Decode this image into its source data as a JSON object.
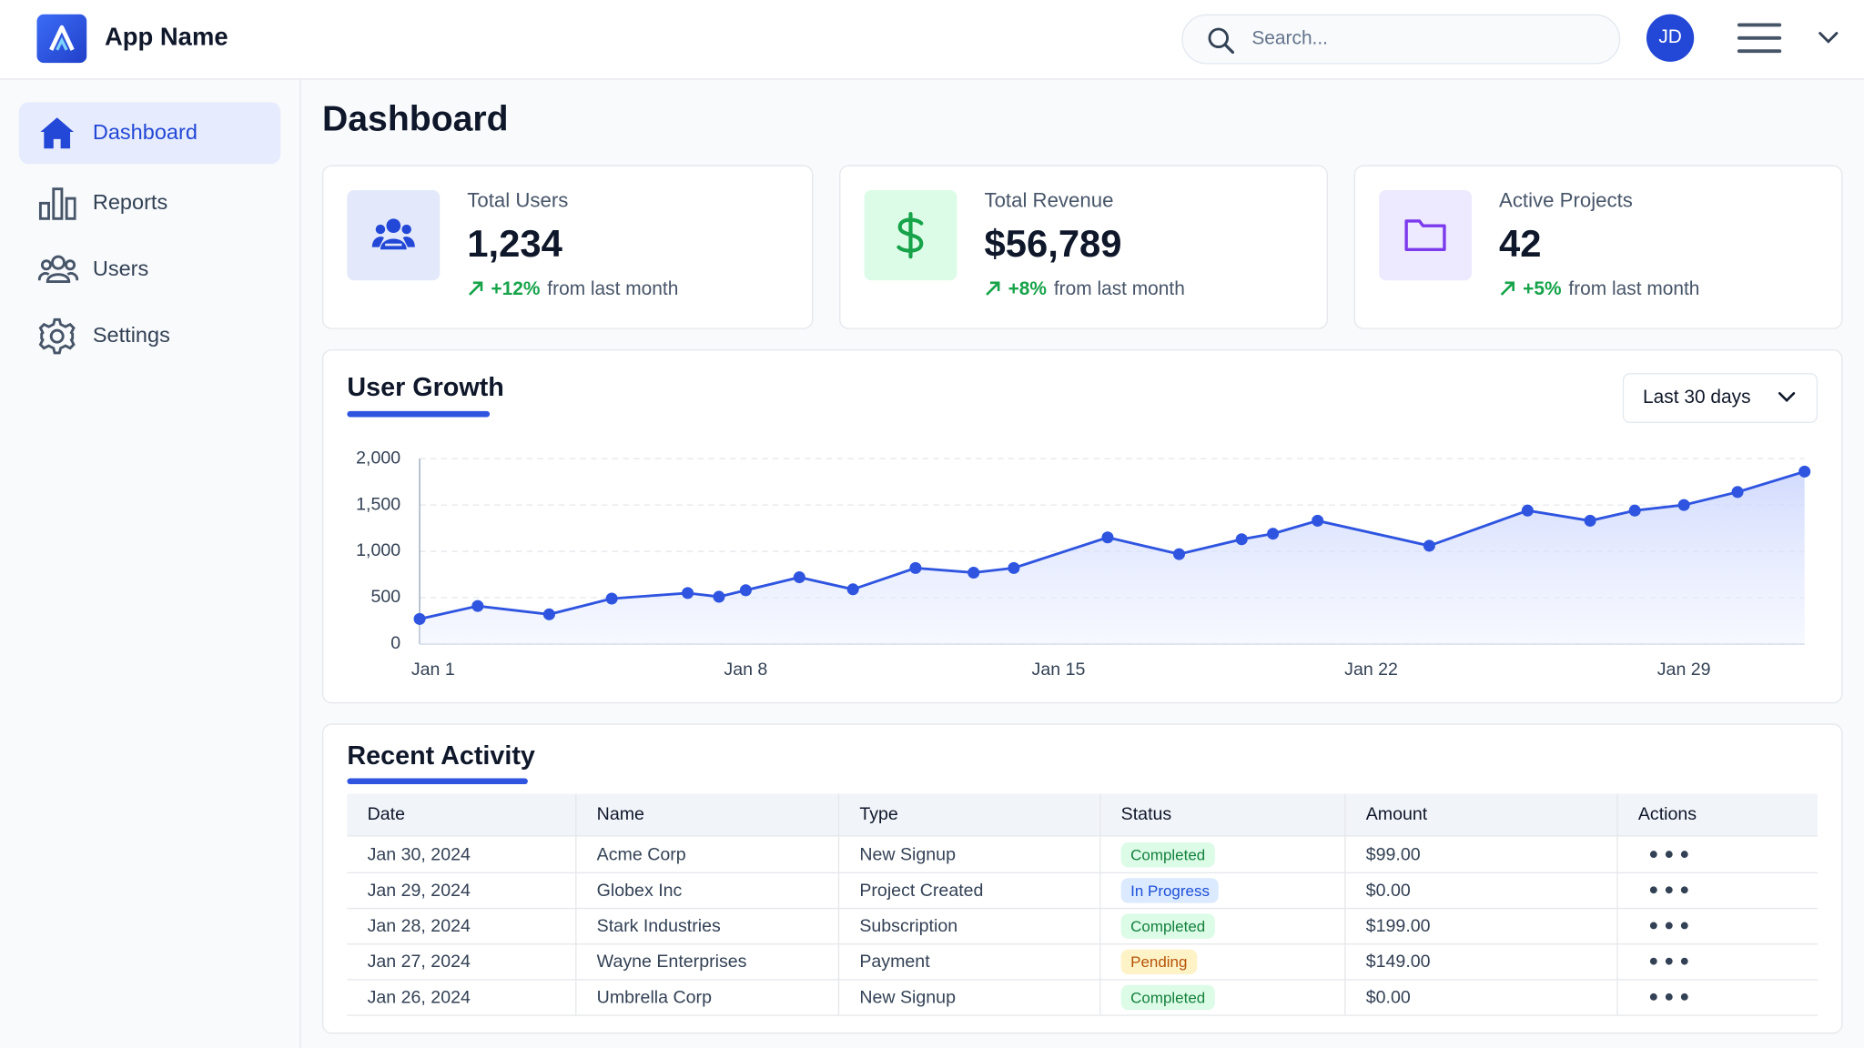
{
  "header": {
    "app_name": "App Name",
    "search_placeholder": "Search...",
    "avatar_initials": "JD"
  },
  "sidebar": {
    "items": [
      "Dashboard",
      "Reports",
      "Users",
      "Settings"
    ]
  },
  "page_title": "Dashboard",
  "stat_cards": [
    {
      "label": "Total Users",
      "value": "1,234",
      "change": "+12%",
      "change_note": "from last month"
    },
    {
      "label": "Total Revenue",
      "value": "$56,789",
      "change": "+8%",
      "change_note": "from last month"
    },
    {
      "label": "Active Projects",
      "value": "42",
      "change": "+5%",
      "change_note": "from last month"
    }
  ],
  "chart_data": {
    "type": "area",
    "title": "User Growth",
    "range_selector": "Last 30 days",
    "x": [
      0.7,
      2.0,
      3.6,
      5.0,
      6.7,
      7.4,
      8.0,
      9.2,
      10.4,
      11.8,
      13.1,
      14.0,
      16.1,
      17.7,
      19.1,
      19.8,
      20.8,
      23.3,
      25.5,
      26.9,
      27.9,
      29.0,
      30.2,
      31.7
    ],
    "values": [
      270,
      410,
      320,
      490,
      550,
      510,
      580,
      720,
      590,
      820,
      770,
      820,
      1150,
      970,
      1130,
      1190,
      1330,
      1060,
      1440,
      1330,
      1440,
      1500,
      1640,
      1860
    ],
    "color": "#2f55e0",
    "xlim": [
      0.7,
      31.7
    ],
    "xticks": [
      {
        "value": 1,
        "label": "Jan 1"
      },
      {
        "value": 8,
        "label": "Jan 8"
      },
      {
        "value": 15,
        "label": "Jan 15"
      },
      {
        "value": 22,
        "label": "Jan 22"
      },
      {
        "value": 29,
        "label": "Jan 29"
      }
    ],
    "ylim": [
      0,
      2000
    ],
    "yticks": [
      0,
      500,
      {
        "value": 1000,
        "label": "1,000"
      },
      {
        "value": 1500,
        "label": "1,500"
      },
      {
        "value": 2000,
        "label": "2,000"
      }
    ],
    "grid": true
  },
  "recent_activity": {
    "title": "Recent Activity",
    "table": {
      "headers": [
        "Date",
        "Name",
        "Type",
        "Status",
        "Amount",
        "Actions"
      ],
      "rows": [
        [
          "Jan 30, 2024",
          "Acme Corp",
          "New Signup",
          "Completed",
          "$99.00"
        ],
        [
          "Jan 29, 2024",
          "Globex Inc",
          "Project Created",
          "In Progress",
          "$0.00"
        ],
        [
          "Jan 28, 2024",
          "Stark Industries",
          "Subscription",
          "Completed",
          "$199.00"
        ],
        [
          "Jan 27, 2024",
          "Wayne Enterprises",
          "Payment",
          "Pending",
          "$149.00"
        ],
        [
          "Jan 26, 2024",
          "Umbrella Corp",
          "New Signup",
          "Completed",
          "$0.00"
        ]
      ]
    }
  }
}
